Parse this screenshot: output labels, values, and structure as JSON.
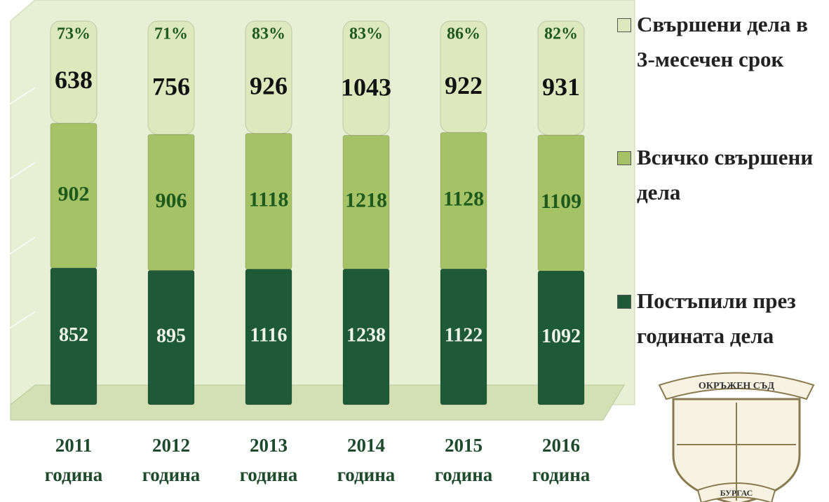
{
  "chart_data": {
    "type": "bar",
    "stacking": "percent",
    "categories": [
      "2011 година",
      "2012 година",
      "2013 година",
      "2014 година",
      "2015 година",
      "2016 година"
    ],
    "series": [
      {
        "name": "Постъпили през годината дела",
        "color": "#1f5a38",
        "values": [
          852,
          895,
          1116,
          1238,
          1122,
          1092
        ]
      },
      {
        "name": "Всичко свършени дела",
        "color": "#a6c267",
        "values": [
          902,
          906,
          1118,
          1218,
          1128,
          1109
        ]
      },
      {
        "name": "Свършени дела в 3-месечен срок",
        "color": "#dde8bd",
        "values": [
          638,
          756,
          926,
          1043,
          922,
          931
        ]
      }
    ],
    "percentages": {
      "values": [
        73,
        71,
        83,
        83,
        86,
        82
      ],
      "value_labels": [
        "73%",
        "71%",
        "83%",
        "83%",
        "86%",
        "82%"
      ]
    },
    "ylim": [
      0,
      100
    ]
  },
  "logo": {
    "top_text": "ОКРЪЖЕН СЪД",
    "bottom_text": "БУРГАС"
  }
}
